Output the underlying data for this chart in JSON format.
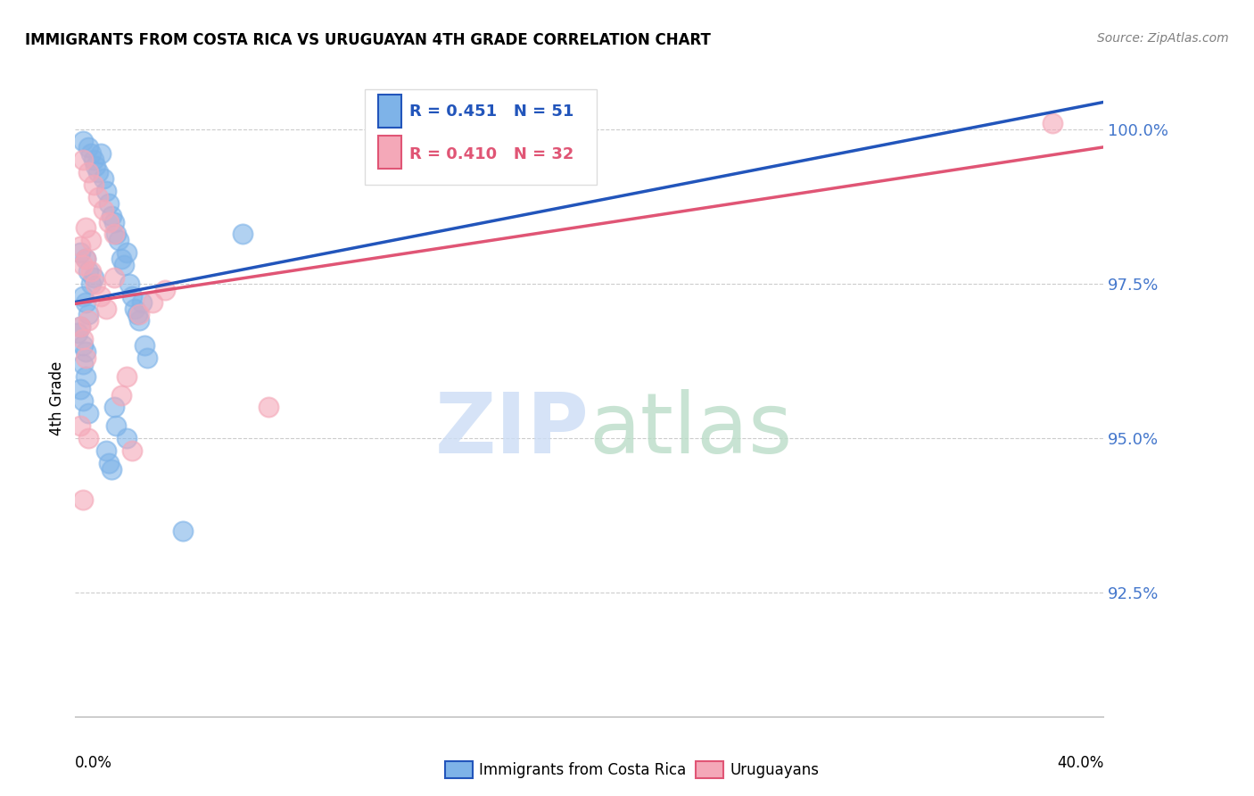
{
  "title": "IMMIGRANTS FROM COSTA RICA VS URUGUAYAN 4TH GRADE CORRELATION CHART",
  "source": "Source: ZipAtlas.com",
  "ylabel": "4th Grade",
  "yticks": [
    92.5,
    95.0,
    97.5,
    100.0
  ],
  "ytick_labels": [
    "92.5%",
    "95.0%",
    "97.5%",
    "100.0%"
  ],
  "xmin": 0.0,
  "xmax": 40.0,
  "ymin": 90.5,
  "ymax": 100.8,
  "blue_R": 0.451,
  "blue_N": 51,
  "pink_R": 0.41,
  "pink_N": 32,
  "blue_color": "#7EB3E8",
  "pink_color": "#F4A8B8",
  "blue_line_color": "#2255BB",
  "pink_line_color": "#E05575",
  "legend_label_blue": "Immigrants from Costa Rica",
  "legend_label_pink": "Uruguayans",
  "blue_points": [
    [
      0.3,
      99.8
    ],
    [
      0.5,
      99.7
    ],
    [
      0.6,
      99.6
    ],
    [
      0.7,
      99.5
    ],
    [
      0.8,
      99.4
    ],
    [
      0.9,
      99.3
    ],
    [
      1.0,
      99.6
    ],
    [
      1.1,
      99.2
    ],
    [
      1.2,
      99.0
    ],
    [
      1.3,
      98.8
    ],
    [
      1.4,
      98.6
    ],
    [
      1.5,
      98.5
    ],
    [
      1.6,
      98.3
    ],
    [
      1.7,
      98.2
    ],
    [
      1.8,
      97.9
    ],
    [
      1.9,
      97.8
    ],
    [
      2.0,
      98.0
    ],
    [
      2.1,
      97.5
    ],
    [
      2.2,
      97.3
    ],
    [
      2.3,
      97.1
    ],
    [
      2.4,
      97.0
    ],
    [
      2.5,
      96.9
    ],
    [
      2.6,
      97.2
    ],
    [
      2.7,
      96.5
    ],
    [
      2.8,
      96.3
    ],
    [
      0.2,
      98.0
    ],
    [
      0.4,
      97.9
    ],
    [
      0.5,
      97.7
    ],
    [
      0.6,
      97.5
    ],
    [
      0.7,
      97.6
    ],
    [
      0.3,
      97.3
    ],
    [
      0.4,
      97.2
    ],
    [
      0.5,
      97.0
    ],
    [
      0.2,
      96.8
    ],
    [
      0.3,
      96.5
    ],
    [
      0.4,
      96.4
    ],
    [
      0.3,
      96.2
    ],
    [
      0.4,
      96.0
    ],
    [
      0.2,
      95.8
    ],
    [
      0.3,
      95.6
    ],
    [
      0.5,
      95.4
    ],
    [
      1.5,
      95.5
    ],
    [
      1.6,
      95.2
    ],
    [
      2.0,
      95.0
    ],
    [
      1.2,
      94.8
    ],
    [
      1.3,
      94.6
    ],
    [
      1.4,
      94.5
    ],
    [
      6.5,
      98.3
    ],
    [
      4.2,
      93.5
    ],
    [
      14.0,
      99.7
    ],
    [
      0.1,
      96.7
    ]
  ],
  "pink_points": [
    [
      0.3,
      99.5
    ],
    [
      0.5,
      99.3
    ],
    [
      0.7,
      99.1
    ],
    [
      0.9,
      98.9
    ],
    [
      1.1,
      98.7
    ],
    [
      1.3,
      98.5
    ],
    [
      1.5,
      98.3
    ],
    [
      0.2,
      98.1
    ],
    [
      0.4,
      97.9
    ],
    [
      0.6,
      97.7
    ],
    [
      0.8,
      97.5
    ],
    [
      1.0,
      97.3
    ],
    [
      1.2,
      97.1
    ],
    [
      2.5,
      97.0
    ],
    [
      0.5,
      96.9
    ],
    [
      0.3,
      96.6
    ],
    [
      0.4,
      96.3
    ],
    [
      2.0,
      96.0
    ],
    [
      1.8,
      95.7
    ],
    [
      2.2,
      94.8
    ],
    [
      0.2,
      95.2
    ],
    [
      0.5,
      95.0
    ],
    [
      3.0,
      97.2
    ],
    [
      7.5,
      95.5
    ],
    [
      0.3,
      94.0
    ],
    [
      3.5,
      97.4
    ],
    [
      0.2,
      96.8
    ],
    [
      0.4,
      98.4
    ],
    [
      38.0,
      100.1
    ],
    [
      1.5,
      97.6
    ],
    [
      0.6,
      98.2
    ],
    [
      0.3,
      97.8
    ]
  ]
}
